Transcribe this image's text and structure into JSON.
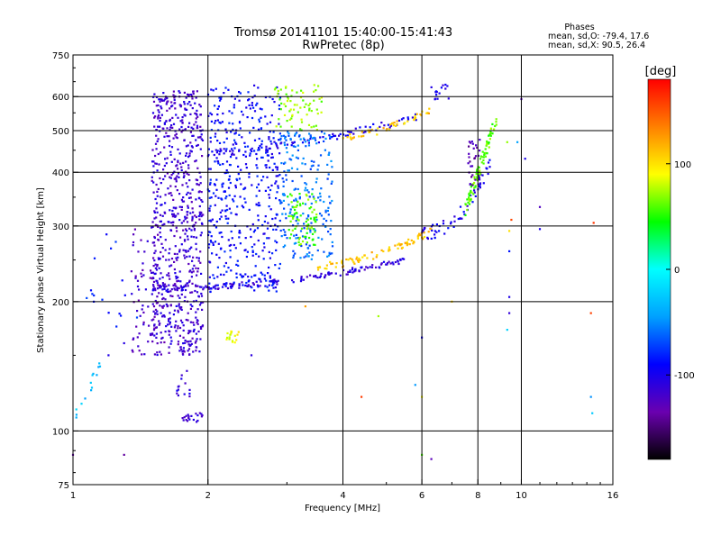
{
  "chart_data": {
    "type": "scatter",
    "title": "Tromsø 20141101 15:40:00-15:41:43",
    "subtitle": "RwPretec (8p)",
    "xlabel": "Frequency [MHz]",
    "ylabel": "Stationary phase Virtual Height [km]",
    "xscale": "log",
    "yscale": "log",
    "xlim": [
      1,
      16
    ],
    "ylim": [
      75,
      750
    ],
    "xticks": [
      {
        "value": 1,
        "label": "1"
      },
      {
        "value": 2,
        "label": "2"
      },
      {
        "value": 4,
        "label": "4"
      },
      {
        "value": 6,
        "label": "6"
      },
      {
        "value": 8,
        "label": "8"
      },
      {
        "value": 10,
        "label": "10"
      },
      {
        "value": 16,
        "label": "16"
      }
    ],
    "yticks": [
      {
        "value": 75,
        "label": "75"
      },
      {
        "value": 100,
        "label": "100"
      },
      {
        "value": 200,
        "label": "200"
      },
      {
        "value": 300,
        "label": "300"
      },
      {
        "value": 400,
        "label": "400"
      },
      {
        "value": 500,
        "label": "500"
      },
      {
        "value": 600,
        "label": "600"
      },
      {
        "value": 750,
        "label": "750"
      }
    ],
    "xgrid": [
      2,
      4,
      6,
      8,
      10
    ],
    "ygrid": [
      100,
      200,
      300,
      400,
      500,
      600
    ],
    "stats": {
      "heading": "Phases",
      "line_o": "mean, sd,O: -79.4, 17.6",
      "line_x": "mean, sd,X:  90.5, 26.4"
    },
    "colorbar": {
      "label": "[deg]",
      "min": -180,
      "max": 180,
      "ticks": [
        {
          "value": 100,
          "label": "100"
        },
        {
          "value": 0,
          "label": "0"
        },
        {
          "value": -100,
          "label": "-100"
        }
      ],
      "colors": [
        "#000000",
        "#6a00b0",
        "#0000ff",
        "#00a0ff",
        "#00ffff",
        "#00ff00",
        "#ffff00",
        "#ff8000",
        "#ff0000"
      ]
    },
    "series": [
      {
        "segments": [
          {
            "x0": 1.5,
            "x1": 5.5,
            "y0": 215,
            "y1": 250,
            "phase": -110,
            "density": 160,
            "spreadY": 0.015,
            "pow": 2.2
          },
          {
            "x0": 3.5,
            "x1": 6.3,
            "y0": 242,
            "y1": 292,
            "phase": 110,
            "density": 80,
            "spreadY": 0.02,
            "pow": 1.8
          },
          {
            "x0": 2.0,
            "x1": 6.0,
            "y0": 445,
            "y1": 540,
            "phase": -100,
            "density": 90,
            "spreadY": 0.02,
            "pow": 1.6
          },
          {
            "x0": 4.0,
            "x1": 6.4,
            "y0": 480,
            "y1": 560,
            "phase": 110,
            "density": 50,
            "spreadY": 0.02,
            "pow": 1.5
          },
          {
            "x0": 6.0,
            "x1": 8.6,
            "y0": 290,
            "y1": 430,
            "phase": -100,
            "density": 60,
            "spreadY": 0.04,
            "pow": 2.5
          },
          {
            "x0": 7.5,
            "x1": 8.8,
            "y0": 330,
            "y1": 530,
            "phase": 60,
            "density": 90,
            "spreadY": 0.04,
            "pow": 1.2
          },
          {
            "x0": 1.0,
            "x1": 1.15,
            "y0": 105,
            "y1": 140,
            "phase": -30,
            "density": 14,
            "spreadY": 0.04,
            "pow": 1
          }
        ],
        "blobs": [
          {
            "x0": 1.5,
            "x1": 1.95,
            "y0": 150,
            "y1": 620,
            "phase": -115,
            "count": 700
          },
          {
            "x0": 1.35,
            "x1": 1.6,
            "y0": 150,
            "y1": 300,
            "phase": -120,
            "count": 90
          },
          {
            "x0": 2.0,
            "x1": 2.9,
            "y0": 210,
            "y1": 640,
            "phase": -90,
            "count": 460
          },
          {
            "x0": 2.9,
            "x1": 3.8,
            "y0": 250,
            "y1": 500,
            "phase": -60,
            "count": 220
          },
          {
            "x0": 3.0,
            "x1": 3.5,
            "y0": 270,
            "y1": 360,
            "phase": 60,
            "count": 80
          },
          {
            "x0": 2.8,
            "x1": 3.6,
            "y0": 500,
            "y1": 640,
            "phase": 70,
            "count": 70
          },
          {
            "x0": 1.75,
            "x1": 1.95,
            "y0": 105,
            "y1": 112,
            "phase": -115,
            "count": 20
          },
          {
            "x0": 1.7,
            "x1": 1.9,
            "y0": 120,
            "y1": 140,
            "phase": -110,
            "count": 14
          },
          {
            "x0": 2.2,
            "x1": 2.35,
            "y0": 160,
            "y1": 172,
            "phase": 90,
            "count": 16
          },
          {
            "x0": 7.6,
            "x1": 8.1,
            "y0": 370,
            "y1": 480,
            "phase": -130,
            "count": 30
          },
          {
            "x0": 6.3,
            "x1": 7.0,
            "y0": 590,
            "y1": 640,
            "phase": -100,
            "count": 16
          },
          {
            "x0": 1.05,
            "x1": 1.4,
            "y0": 175,
            "y1": 290,
            "phase": -80,
            "count": 16
          }
        ],
        "scatter": [
          {
            "x": 1.0,
            "y": 88,
            "phase": -120
          },
          {
            "x": 1.3,
            "y": 88,
            "phase": -130
          },
          {
            "x": 6.3,
            "y": 86,
            "phase": -130
          },
          {
            "x": 6.0,
            "y": 88,
            "phase": 60
          },
          {
            "x": 9.3,
            "y": 172,
            "phase": -30
          },
          {
            "x": 9.4,
            "y": 188,
            "phase": -100
          },
          {
            "x": 9.4,
            "y": 205,
            "phase": -100
          },
          {
            "x": 9.4,
            "y": 262,
            "phase": -80
          },
          {
            "x": 9.4,
            "y": 292,
            "phase": 90
          },
          {
            "x": 9.5,
            "y": 310,
            "phase": 170
          },
          {
            "x": 11.0,
            "y": 332,
            "phase": -110
          },
          {
            "x": 11.0,
            "y": 295,
            "phase": -110
          },
          {
            "x": 10.0,
            "y": 592,
            "phase": -130
          },
          {
            "x": 10.2,
            "y": 430,
            "phase": -110
          },
          {
            "x": 9.3,
            "y": 470,
            "phase": 60
          },
          {
            "x": 14.5,
            "y": 305,
            "phase": 160
          },
          {
            "x": 14.3,
            "y": 188,
            "phase": 170
          },
          {
            "x": 14.3,
            "y": 120,
            "phase": -40
          },
          {
            "x": 14.4,
            "y": 110,
            "phase": -40
          },
          {
            "x": 6.0,
            "y": 120,
            "phase": 90
          },
          {
            "x": 5.8,
            "y": 128,
            "phase": -40
          },
          {
            "x": 6.0,
            "y": 165,
            "phase": -100
          },
          {
            "x": 4.4,
            "y": 120,
            "phase": 170
          },
          {
            "x": 4.8,
            "y": 185,
            "phase": 80
          },
          {
            "x": 7.0,
            "y": 200,
            "phase": 100
          },
          {
            "x": 2.5,
            "y": 150,
            "phase": -120
          },
          {
            "x": 1.3,
            "y": 160,
            "phase": -110
          },
          {
            "x": 1.2,
            "y": 150,
            "phase": -100
          },
          {
            "x": 1.25,
            "y": 175,
            "phase": -90
          },
          {
            "x": 3.3,
            "y": 195,
            "phase": 110
          },
          {
            "x": 9.8,
            "y": 470,
            "phase": -40
          }
        ]
      }
    ]
  }
}
